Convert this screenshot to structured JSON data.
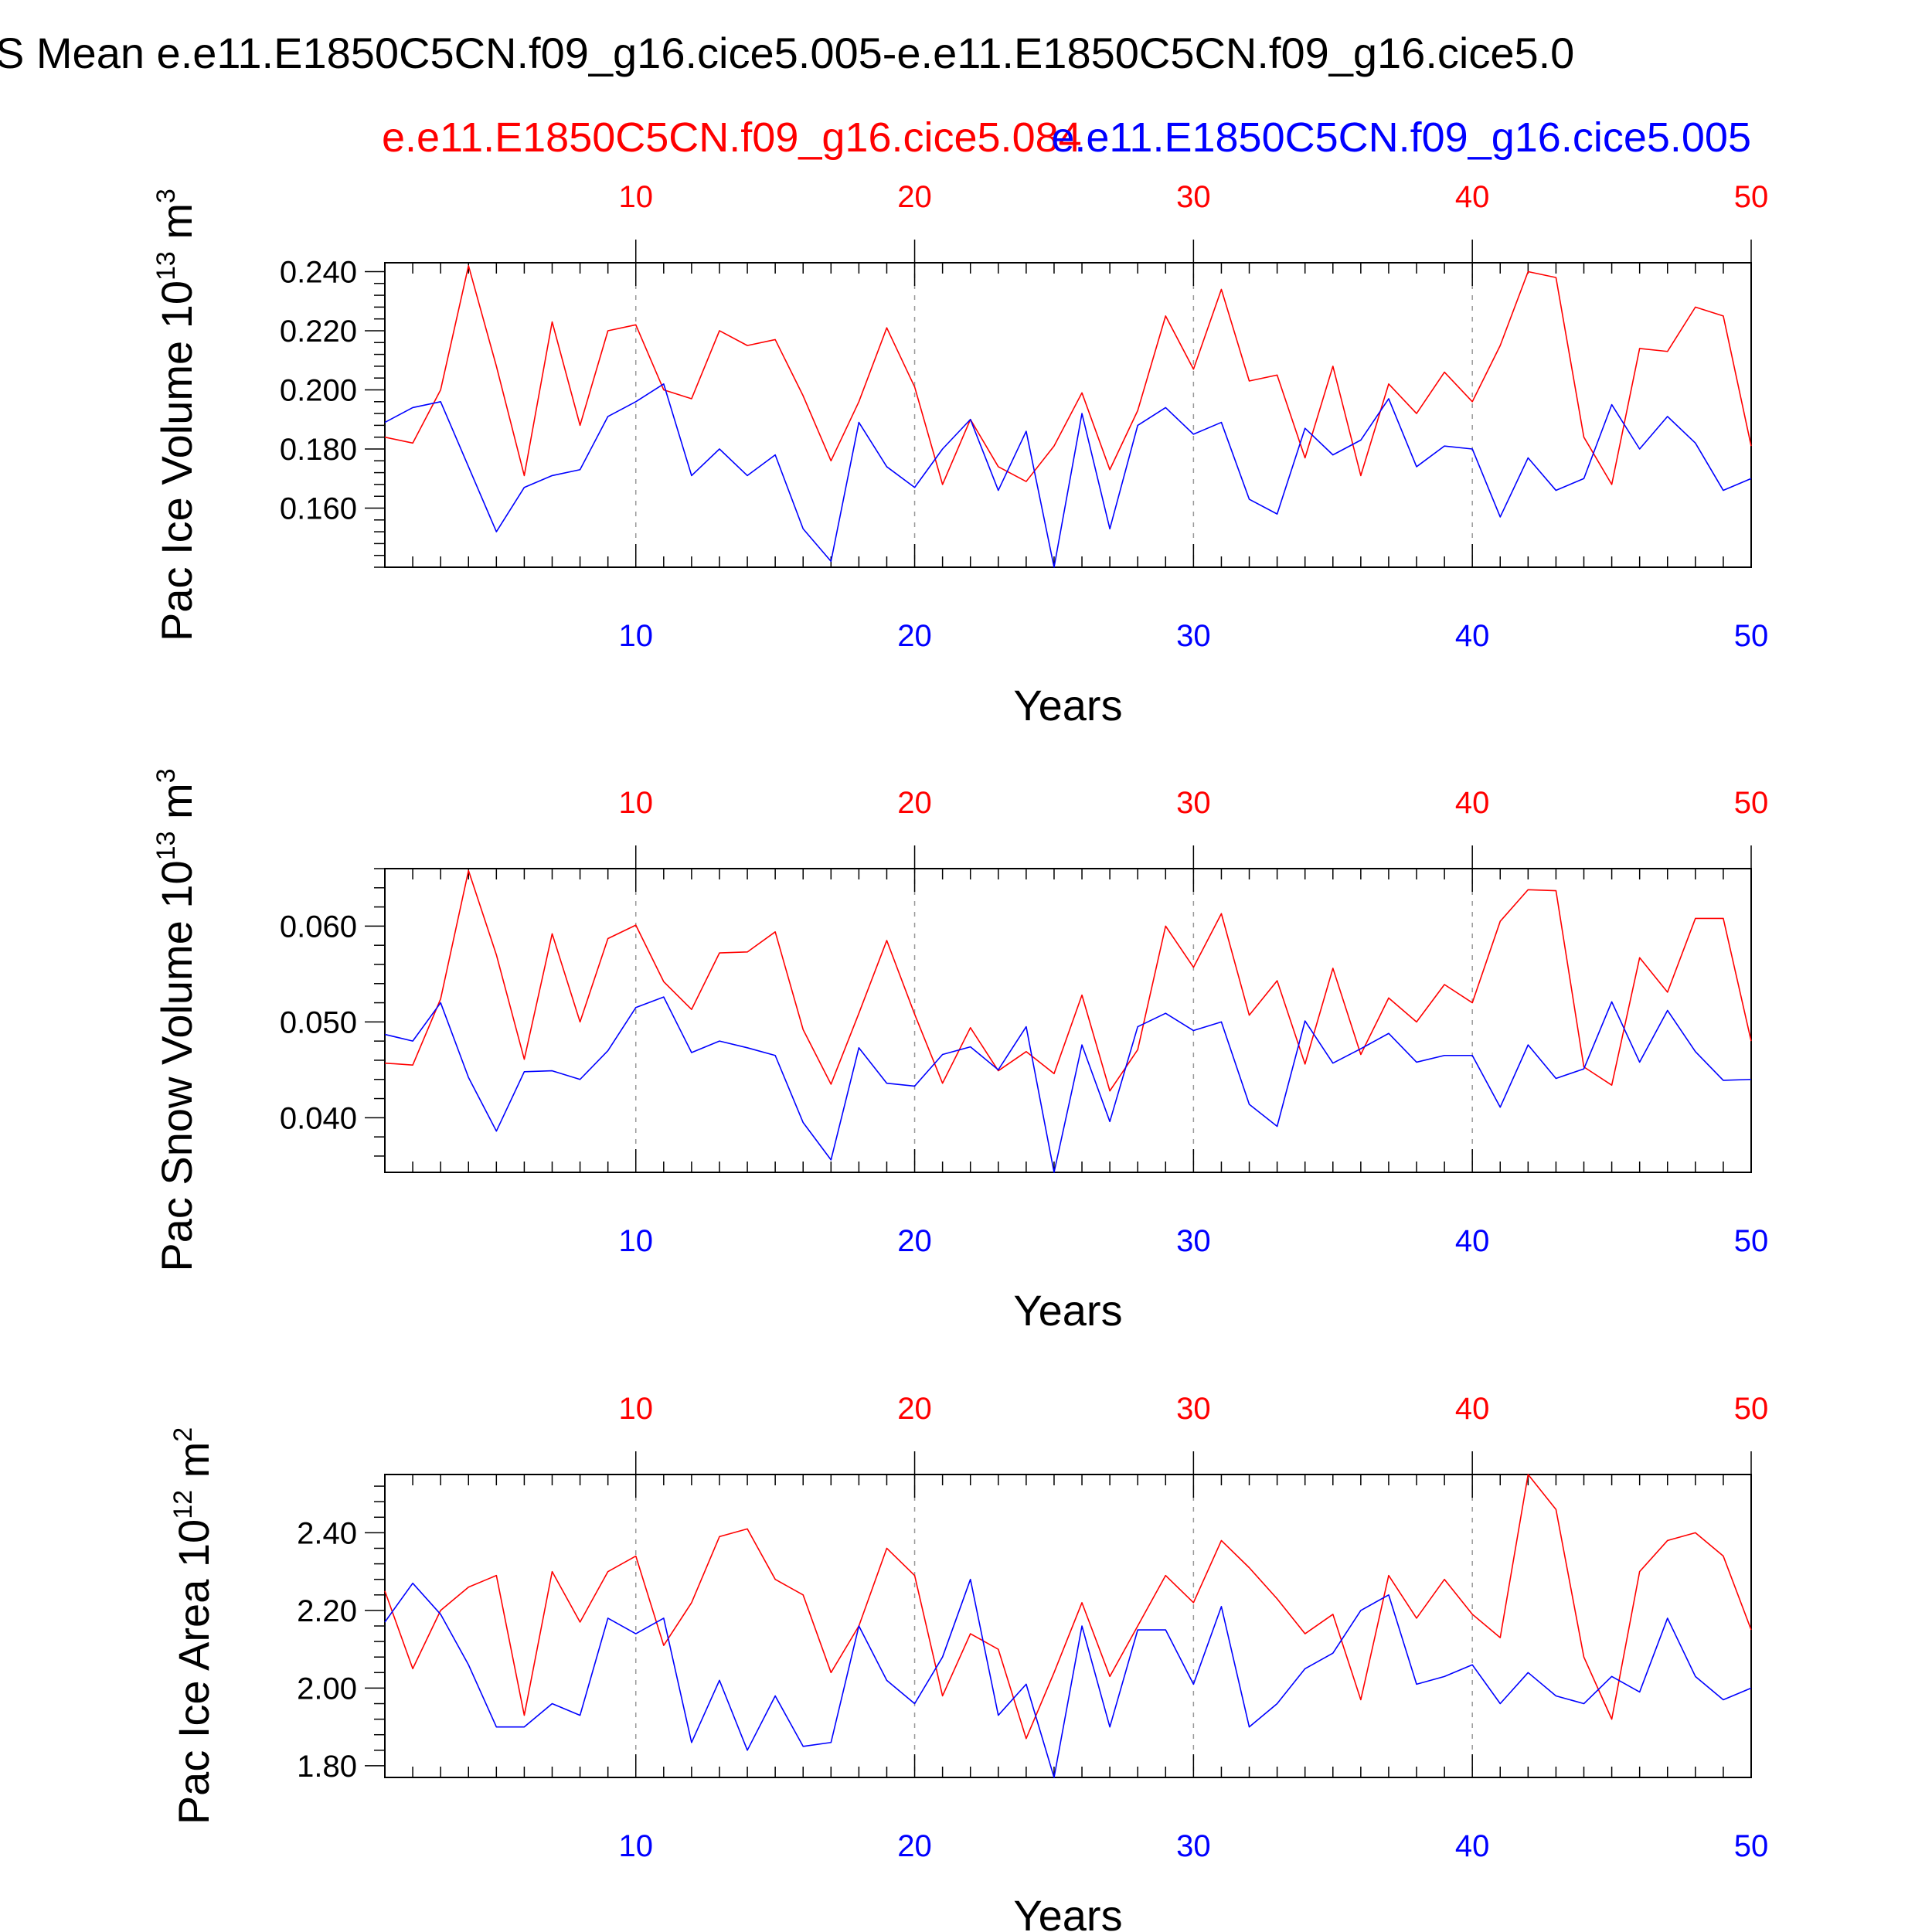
{
  "header": {
    "title": "S Mean e.e11.E1850C5CN.f09_g16.cice5.005-e.e11.E1850C5CN.f09_g16.cice5.0",
    "case_red": "e.e11.E1850C5CN.f09_g16.cice5.084",
    "case_blue": "e.e11.E1850C5CN.f09_g16.cice5.005"
  },
  "colors": {
    "case_red": "#ff0000",
    "case_blue": "#0000ff"
  },
  "chart_data": [
    {
      "type": "line",
      "ylabel": "Pac Ice Volume 10",
      "yunit_exp": "13",
      "yunit_base": "m",
      "yunit_pow": "3",
      "xlabel": "Years",
      "xlim": [
        1,
        50
      ],
      "ylim": [
        0.14,
        0.243
      ],
      "yticks": [
        0.16,
        0.18,
        0.2,
        0.22,
        0.24
      ],
      "ytick_labels": [
        "0.160",
        "0.180",
        "0.200",
        "0.220",
        "0.240"
      ],
      "xticks": [
        10,
        20,
        30,
        40,
        50
      ],
      "xtick_labels": [
        "10",
        "20",
        "30",
        "40",
        "50"
      ],
      "series": [
        {
          "color": "#ff0000",
          "values": [
            0.184,
            0.182,
            0.2,
            0.242,
            0.208,
            0.171,
            0.223,
            0.188,
            0.22,
            0.222,
            0.2,
            0.197,
            0.22,
            0.215,
            0.217,
            0.198,
            0.176,
            0.196,
            0.221,
            0.201,
            0.168,
            0.19,
            0.174,
            0.169,
            0.181,
            0.199,
            0.173,
            0.193,
            0.225,
            0.207,
            0.234,
            0.203,
            0.205,
            0.177,
            0.208,
            0.171,
            0.202,
            0.192,
            0.206,
            0.196,
            0.215,
            0.24,
            0.238,
            0.184,
            0.168,
            0.214,
            0.213,
            0.228,
            0.225,
            0.181
          ]
        },
        {
          "color": "#0000ff",
          "values": [
            0.189,
            0.194,
            0.196,
            0.174,
            0.152,
            0.167,
            0.171,
            0.173,
            0.191,
            0.196,
            0.202,
            0.171,
            0.18,
            0.171,
            0.178,
            0.153,
            0.142,
            0.189,
            0.174,
            0.167,
            0.18,
            0.19,
            0.166,
            0.186,
            0.14,
            0.192,
            0.153,
            0.188,
            0.194,
            0.185,
            0.189,
            0.163,
            0.158,
            0.187,
            0.178,
            0.183,
            0.197,
            0.174,
            0.181,
            0.18,
            0.157,
            0.177,
            0.166,
            0.17,
            0.195,
            0.18,
            0.191,
            0.182,
            0.166,
            0.17
          ]
        }
      ]
    },
    {
      "type": "line",
      "ylabel": "Pac Snow Volume 10",
      "yunit_exp": "13",
      "yunit_base": "m",
      "yunit_pow": "3",
      "xlabel": "Years",
      "xlim": [
        1,
        50
      ],
      "ylim": [
        0.0343,
        0.066
      ],
      "yticks": [
        0.04,
        0.05,
        0.06
      ],
      "ytick_labels": [
        "0.040",
        "0.050",
        "0.060"
      ],
      "xticks": [
        10,
        20,
        30,
        40,
        50
      ],
      "xtick_labels": [
        "10",
        "20",
        "30",
        "40",
        "50"
      ],
      "series": [
        {
          "color": "#ff0000",
          "values": [
            0.0457,
            0.0455,
            0.0524,
            0.0658,
            0.057,
            0.0461,
            0.0592,
            0.05,
            0.0587,
            0.0601,
            0.0542,
            0.0513,
            0.0572,
            0.0573,
            0.0594,
            0.0492,
            0.0435,
            0.0509,
            0.0585,
            0.0508,
            0.0436,
            0.0494,
            0.0449,
            0.0469,
            0.0446,
            0.0528,
            0.0428,
            0.0471,
            0.06,
            0.0557,
            0.0613,
            0.0507,
            0.0543,
            0.0456,
            0.0556,
            0.0466,
            0.0525,
            0.05,
            0.0539,
            0.052,
            0.0605,
            0.0638,
            0.0637,
            0.0453,
            0.0434,
            0.0567,
            0.0531,
            0.0608,
            0.0608,
            0.048
          ]
        },
        {
          "color": "#0000ff",
          "values": [
            0.0487,
            0.048,
            0.052,
            0.0442,
            0.0386,
            0.0448,
            0.0449,
            0.044,
            0.047,
            0.0515,
            0.0526,
            0.0468,
            0.048,
            0.0473,
            0.0465,
            0.0395,
            0.0356,
            0.0473,
            0.0436,
            0.0433,
            0.0466,
            0.0474,
            0.045,
            0.0495,
            0.0343,
            0.0476,
            0.0396,
            0.0495,
            0.0509,
            0.0491,
            0.05,
            0.0414,
            0.0391,
            0.0501,
            0.0457,
            0.0472,
            0.0488,
            0.0458,
            0.0465,
            0.0465,
            0.0411,
            0.0476,
            0.0441,
            0.0451,
            0.0521,
            0.0458,
            0.0512,
            0.0469,
            0.0439,
            0.044
          ]
        }
      ]
    },
    {
      "type": "line",
      "ylabel": "Pac Ice Area 10",
      "yunit_exp": "12",
      "yunit_base": "m",
      "yunit_pow": "2",
      "xlabel": "Years",
      "xlim": [
        1,
        50
      ],
      "ylim": [
        1.77,
        2.55
      ],
      "yticks": [
        1.8,
        2.0,
        2.2,
        2.4
      ],
      "ytick_labels": [
        "1.80",
        "2.00",
        "2.20",
        "2.40"
      ],
      "xticks": [
        10,
        20,
        30,
        40,
        50
      ],
      "xtick_labels": [
        "10",
        "20",
        "30",
        "40",
        "50"
      ],
      "series": [
        {
          "color": "#ff0000",
          "values": [
            2.25,
            2.05,
            2.2,
            2.26,
            2.29,
            1.93,
            2.3,
            2.17,
            2.3,
            2.34,
            2.11,
            2.22,
            2.39,
            2.41,
            2.28,
            2.24,
            2.04,
            2.16,
            2.36,
            2.29,
            1.98,
            2.14,
            2.1,
            1.87,
            2.04,
            2.22,
            2.03,
            2.16,
            2.29,
            2.22,
            2.38,
            2.31,
            2.23,
            2.14,
            2.19,
            1.97,
            2.29,
            2.18,
            2.28,
            2.19,
            2.13,
            2.55,
            2.46,
            2.08,
            1.92,
            2.3,
            2.38,
            2.4,
            2.34,
            2.15
          ]
        },
        {
          "color": "#0000ff",
          "values": [
            2.17,
            2.27,
            2.19,
            2.06,
            1.9,
            1.9,
            1.96,
            1.93,
            2.18,
            2.14,
            2.18,
            1.86,
            2.02,
            1.84,
            1.98,
            1.85,
            1.86,
            2.16,
            2.02,
            1.96,
            2.08,
            2.28,
            1.93,
            2.01,
            1.77,
            2.16,
            1.9,
            2.15,
            2.15,
            2.01,
            2.21,
            1.9,
            1.96,
            2.05,
            2.09,
            2.2,
            2.24,
            2.01,
            2.03,
            2.06,
            1.96,
            2.04,
            1.98,
            1.96,
            2.03,
            1.99,
            2.18,
            2.03,
            1.97,
            2.0
          ]
        }
      ]
    }
  ]
}
